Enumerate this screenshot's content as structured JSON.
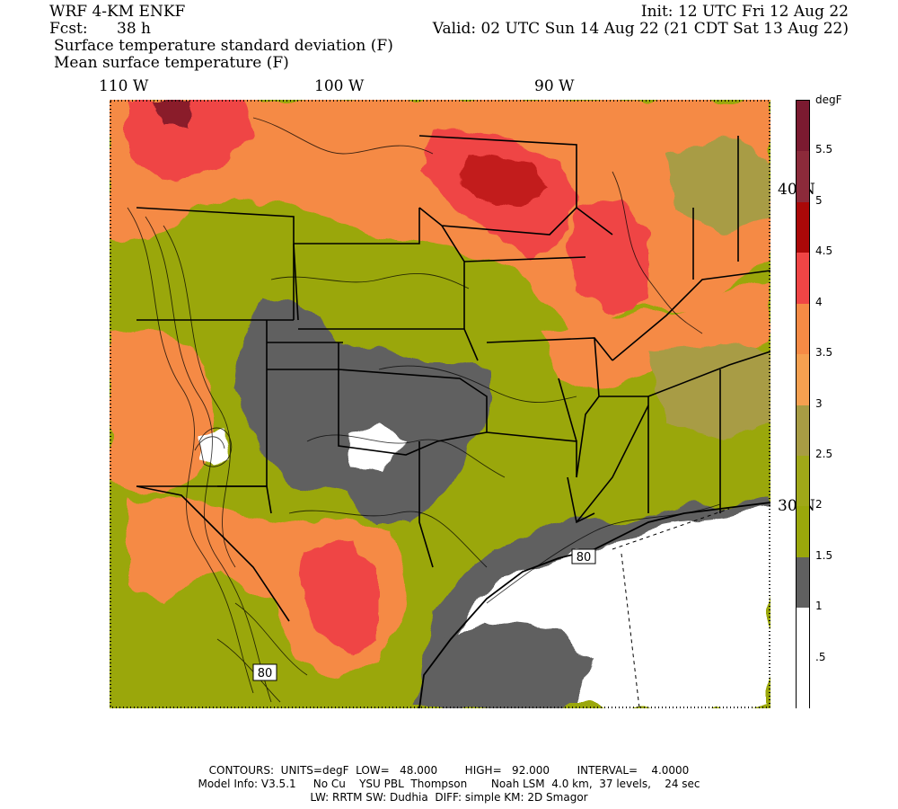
{
  "header": {
    "model": "WRF 4-KM ENKF",
    "fcst_label": "Fcst:",
    "fcst_value": "38 h",
    "init": "Init: 12 UTC Fri 12 Aug 22",
    "valid": "Valid: 02 UTC Sun 14 Aug 22 (21 CDT Sat 13 Aug 22)",
    "field1": "Surface temperature standard deviation (F)",
    "field2": "Mean surface temperature (F)"
  },
  "longitudes": [
    "110 W",
    "100 W",
    "90 W"
  ],
  "latitudes": [
    "40 N",
    "30 N"
  ],
  "colorbar": {
    "unit": "degF",
    "labels": [
      "5.5",
      "5",
      "4.5",
      "4",
      "3.5",
      "3",
      "2.5",
      "2",
      "1.5",
      "1",
      ".5"
    ],
    "colors": [
      "#7b1a30",
      "#8c2a3a",
      "#aa0808",
      "#ef4545",
      "#f58a45",
      "#f5a050",
      "#a89c44",
      "#a0a818",
      "#9aa70b",
      "#606060",
      "#ffffff",
      "#ffffff"
    ]
  },
  "map": {
    "contour_labels": [
      "80",
      "80"
    ],
    "colors": {
      "white": "#ffffff",
      "gray": "#606060",
      "olive": "#9aa70b",
      "khaki": "#a89c44",
      "orange": "#f58a45",
      "red": "#ef4545",
      "darkred": "#c21a1a",
      "maroon": "#8a1a2a"
    }
  },
  "footer": {
    "contours": "CONTOURS:  UNITS=degF  LOW=   48.000        HIGH=   92.000        INTERVAL=    4.0000",
    "model_info": "Model Info: V3.5.1     No Cu    YSU PBL  Thompson       Noah LSM  4.0 km,  37 levels,    24 sec",
    "physics": "LW: RRTM SW: Dudhia  DIFF: simple KM: 2D Smagor"
  }
}
